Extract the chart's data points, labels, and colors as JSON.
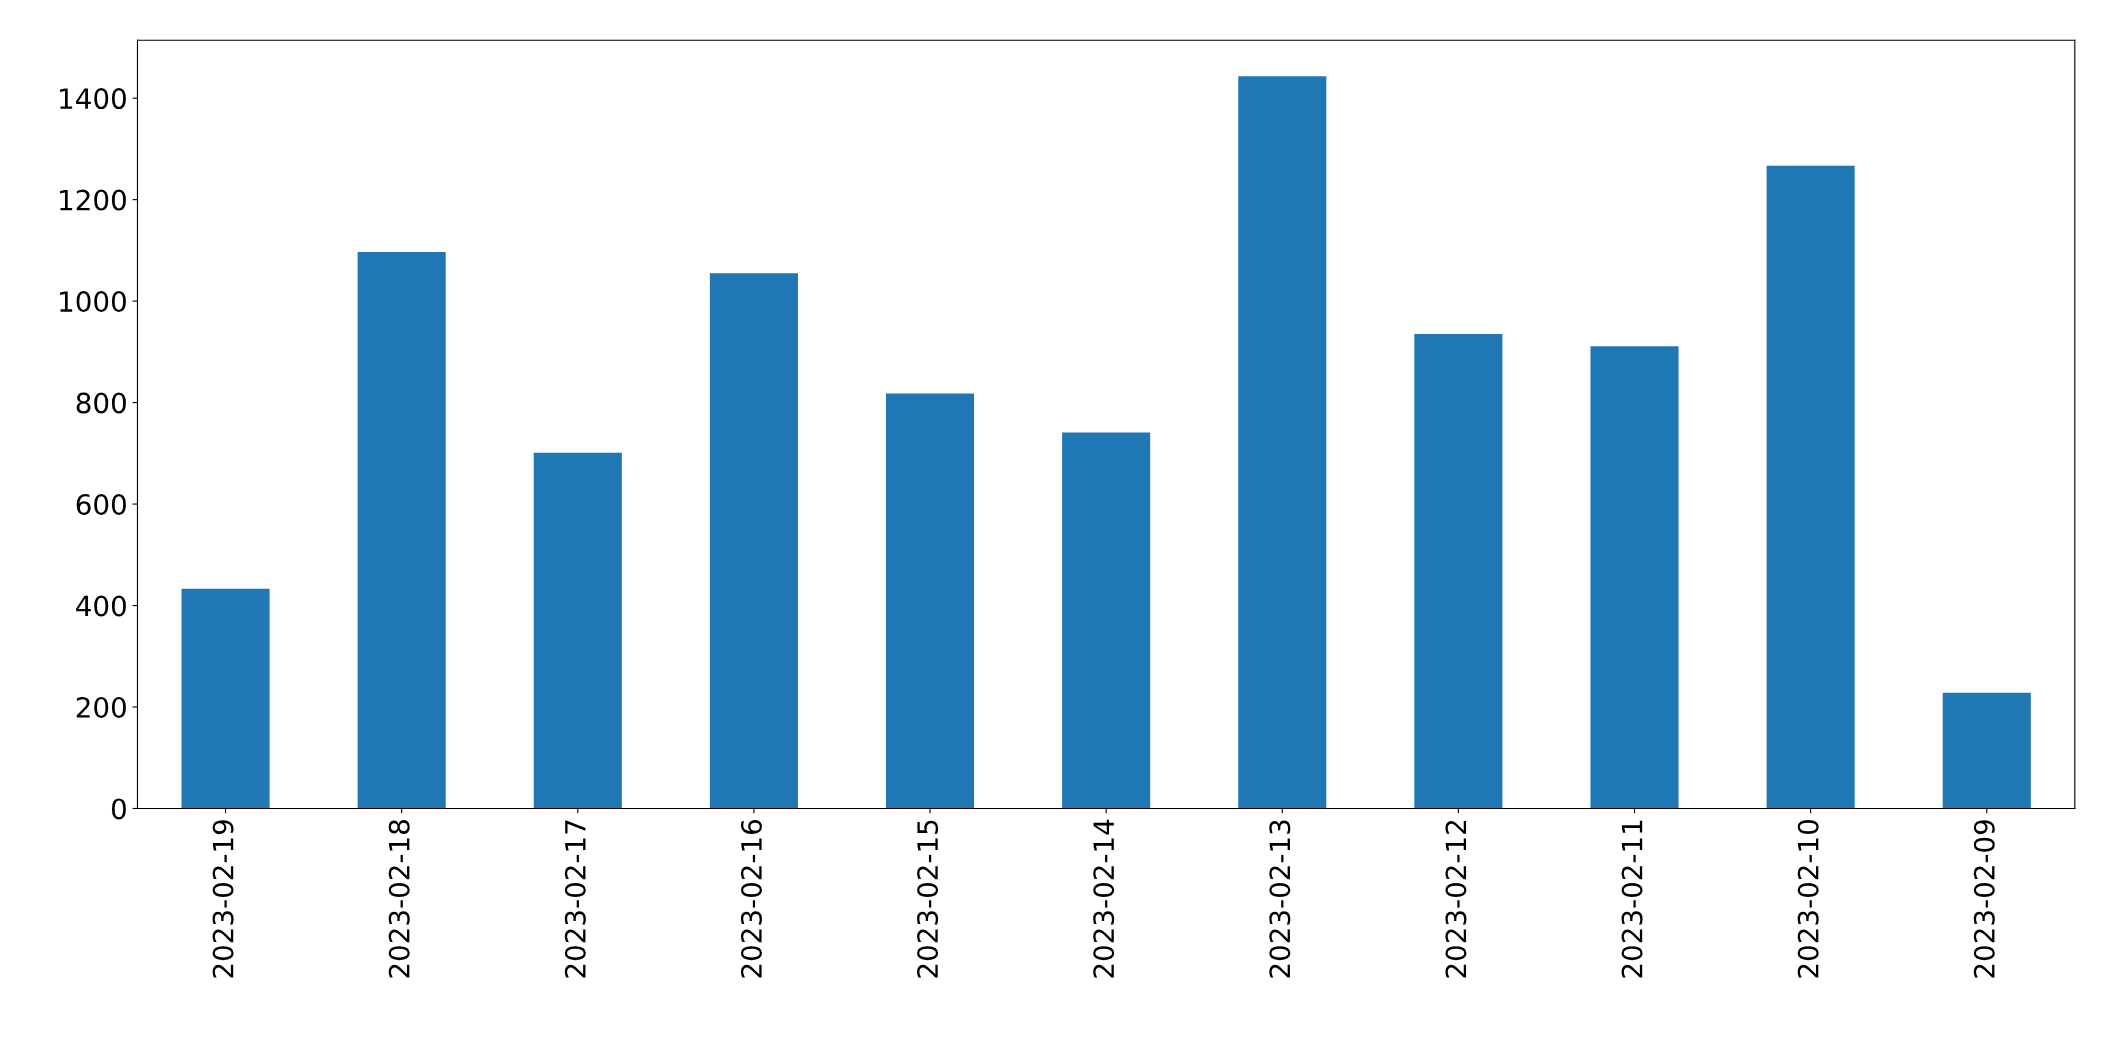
{
  "chart_data": {
    "type": "bar",
    "categories": [
      "2023-02-19",
      "2023-02-18",
      "2023-02-17",
      "2023-02-16",
      "2023-02-15",
      "2023-02-14",
      "2023-02-13",
      "2023-02-12",
      "2023-02-11",
      "2023-02-10",
      "2023-02-09"
    ],
    "values": [
      433,
      1097,
      701,
      1055,
      818,
      741,
      1443,
      935,
      911,
      1267,
      228
    ],
    "color": "#1f77b4",
    "ylim": [
      0,
      1514
    ],
    "yticks": [
      0,
      200,
      400,
      600,
      800,
      1000,
      1200,
      1400
    ],
    "grid": false,
    "legend": false
  }
}
